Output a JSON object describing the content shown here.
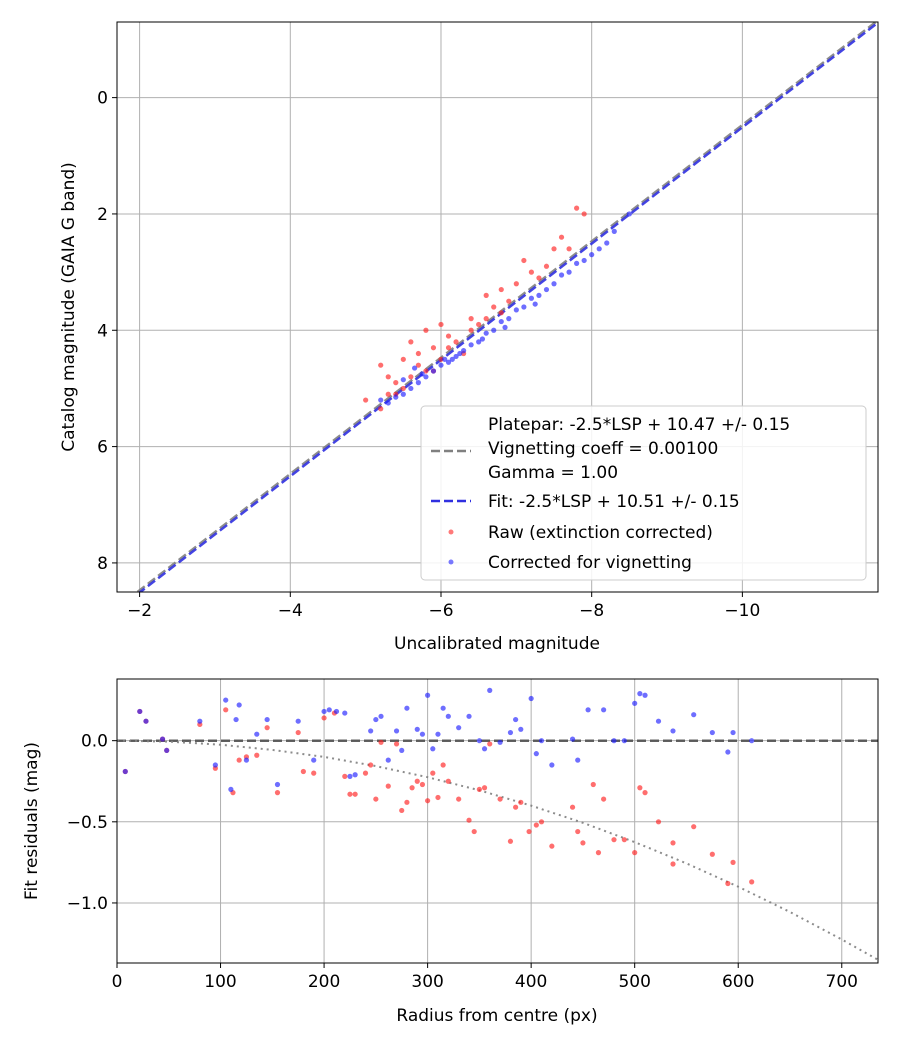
{
  "chart_data": [
    {
      "type": "scatter",
      "xlabel": "Uncalibrated magnitude",
      "ylabel": "Catalog magnitude (GAIA G band)",
      "xlim": [
        -1.7,
        -11.8
      ],
      "ylim": [
        8.5,
        -1.3
      ],
      "xticks": [
        -2,
        -4,
        -6,
        -8,
        -10
      ],
      "xtick_labels": [
        "−2",
        "−4",
        "−6",
        "−8",
        "−10"
      ],
      "yticks": [
        0,
        2,
        4,
        6,
        8
      ],
      "ytick_labels": [
        "0",
        "2",
        "4",
        "6",
        "8"
      ],
      "grid": true,
      "legend_position": "lower-right",
      "lines": [
        {
          "name": "Platepar",
          "label": "Platepar: -2.5*LSP + 10.47 +/- 0.15",
          "color": "#808080",
          "style": "dashed",
          "x": [
            -1.7,
            -11.8
          ],
          "y": [
            8.77,
            -1.33
          ]
        },
        {
          "name": "Fit",
          "label": "Fit: -2.5*LSP + 10.51 +/- 0.15",
          "color": "#3030e0",
          "style": "dashed",
          "x": [
            -1.7,
            -11.8
          ],
          "y": [
            8.81,
            -1.29
          ]
        }
      ],
      "legend_text": [
        "Vignetting coeff = 0.00100",
        "Gamma = 1.00"
      ],
      "series": [
        {
          "name": "Raw (extinction corrected)",
          "label": "Raw (extinction corrected)",
          "color": "#ff2020",
          "points": [
            [
              -5.2,
              5.35
            ],
            [
              -5.3,
              5.1
            ],
            [
              -5.5,
              5.0
            ],
            [
              -5.6,
              4.8
            ],
            [
              -5.8,
              4.7
            ],
            [
              -6.0,
              4.5
            ],
            [
              -6.1,
              4.3
            ],
            [
              -6.4,
              4.0
            ],
            [
              -6.6,
              3.8
            ],
            [
              -6.8,
              3.7
            ],
            [
              -7.0,
              3.2
            ],
            [
              -7.2,
              3.0
            ],
            [
              -7.4,
              2.9
            ],
            [
              -7.5,
              2.6
            ],
            [
              -7.7,
              2.6
            ],
            [
              -7.8,
              1.9
            ],
            [
              -7.9,
              2.0
            ],
            [
              -5.0,
              5.2
            ],
            [
              -5.4,
              4.9
            ],
            [
              -5.7,
              4.6
            ],
            [
              -5.9,
              4.3
            ],
            [
              -6.2,
              4.2
            ],
            [
              -6.5,
              3.9
            ],
            [
              -6.9,
              3.5
            ],
            [
              -7.3,
              3.1
            ],
            [
              -5.8,
              4.0
            ],
            [
              -6.0,
              3.9
            ],
            [
              -6.3,
              4.4
            ],
            [
              -5.5,
              4.5
            ],
            [
              -5.6,
              4.2
            ],
            [
              -6.7,
              3.6
            ],
            [
              -7.1,
              2.8
            ],
            [
              -5.3,
              4.8
            ],
            [
              -5.9,
              4.7
            ],
            [
              -6.1,
              4.1
            ],
            [
              -5.4,
              5.1
            ],
            [
              -5.2,
              4.6
            ],
            [
              -6.6,
              3.4
            ],
            [
              -7.6,
              2.4
            ],
            [
              -5.7,
              4.4
            ],
            [
              -6.4,
              3.8
            ],
            [
              -6.8,
              3.3
            ]
          ]
        },
        {
          "name": "Corrected for vignetting",
          "label": "Corrected for vignetting",
          "color": "#2020ff",
          "points": [
            [
              -5.3,
              5.25
            ],
            [
              -5.5,
              5.1
            ],
            [
              -5.7,
              4.9
            ],
            [
              -5.9,
              4.7
            ],
            [
              -6.1,
              4.55
            ],
            [
              -6.3,
              4.35
            ],
            [
              -6.5,
              4.2
            ],
            [
              -6.7,
              4.0
            ],
            [
              -6.9,
              3.8
            ],
            [
              -7.1,
              3.6
            ],
            [
              -7.3,
              3.4
            ],
            [
              -7.5,
              3.2
            ],
            [
              -7.7,
              3.0
            ],
            [
              -7.9,
              2.8
            ],
            [
              -8.1,
              2.6
            ],
            [
              -8.3,
              2.3
            ],
            [
              -8.5,
              2.0
            ],
            [
              -5.4,
              5.15
            ],
            [
              -5.6,
              5.0
            ],
            [
              -5.8,
              4.8
            ],
            [
              -6.0,
              4.6
            ],
            [
              -6.2,
              4.45
            ],
            [
              -6.4,
              4.25
            ],
            [
              -6.6,
              4.05
            ],
            [
              -6.8,
              3.85
            ],
            [
              -7.0,
              3.65
            ],
            [
              -7.2,
              3.45
            ],
            [
              -7.4,
              3.3
            ],
            [
              -7.6,
              3.05
            ],
            [
              -7.8,
              2.85
            ],
            [
              -8.0,
              2.7
            ],
            [
              -5.2,
              5.2
            ],
            [
              -5.75,
              4.75
            ],
            [
              -6.15,
              4.5
            ],
            [
              -6.55,
              4.15
            ],
            [
              -5.65,
              4.65
            ],
            [
              -6.05,
              4.5
            ],
            [
              -5.5,
              4.85
            ],
            [
              -6.25,
              4.4
            ],
            [
              -6.85,
              3.95
            ],
            [
              -7.25,
              3.55
            ],
            [
              -8.2,
              2.5
            ]
          ]
        }
      ]
    },
    {
      "type": "scatter",
      "xlabel": "Radius from centre (px)",
      "ylabel": "Fit residuals (mag)",
      "xlim": [
        0,
        735
      ],
      "ylim": [
        -1.37,
        0.38
      ],
      "xticks": [
        0,
        100,
        200,
        300,
        400,
        500,
        600,
        700
      ],
      "xtick_labels": [
        "0",
        "100",
        "200",
        "300",
        "400",
        "500",
        "600",
        "700"
      ],
      "yticks": [
        0.0,
        -0.5,
        -1.0
      ],
      "ytick_labels": [
        "0.0",
        "−0.5",
        "−1.0"
      ],
      "grid": true,
      "lines": [
        {
          "name": "Zero",
          "color": "#505050",
          "style": "dashed",
          "x": [
            0,
            735
          ],
          "y": [
            0,
            0
          ]
        },
        {
          "name": "Vignetting model",
          "color": "#808080",
          "style": "dotted",
          "x": [
            0,
            50,
            100,
            150,
            200,
            250,
            300,
            350,
            400,
            450,
            500,
            550,
            600,
            650,
            700,
            735
          ],
          "y": [
            0,
            -0.006,
            -0.025,
            -0.057,
            -0.1,
            -0.157,
            -0.225,
            -0.306,
            -0.4,
            -0.506,
            -0.625,
            -0.756,
            -0.9,
            -1.056,
            -1.225,
            -1.35
          ]
        }
      ],
      "series": [
        {
          "name": "Raw (extinction corrected)",
          "color": "#ff2020",
          "points": [
            [
              8,
              -0.19
            ],
            [
              22,
              0.18
            ],
            [
              28,
              0.12
            ],
            [
              44,
              0.01
            ],
            [
              48,
              -0.06
            ],
            [
              80,
              0.1
            ],
            [
              95,
              -0.17
            ],
            [
              105,
              0.19
            ],
            [
              112,
              -0.32
            ],
            [
              118,
              -0.12
            ],
            [
              125,
              -0.1
            ],
            [
              135,
              -0.09
            ],
            [
              145,
              0.08
            ],
            [
              155,
              -0.32
            ],
            [
              175,
              0.05
            ],
            [
              180,
              -0.19
            ],
            [
              190,
              -0.2
            ],
            [
              200,
              0.14
            ],
            [
              210,
              0.17
            ],
            [
              220,
              -0.22
            ],
            [
              225,
              -0.33
            ],
            [
              230,
              -0.33
            ],
            [
              240,
              -0.2
            ],
            [
              245,
              -0.15
            ],
            [
              250,
              -0.36
            ],
            [
              255,
              -0.01
            ],
            [
              262,
              -0.28
            ],
            [
              270,
              -0.02
            ],
            [
              275,
              -0.43
            ],
            [
              280,
              -0.38
            ],
            [
              285,
              -0.29
            ],
            [
              290,
              -0.25
            ],
            [
              295,
              -0.27
            ],
            [
              300,
              -0.37
            ],
            [
              305,
              -0.2
            ],
            [
              310,
              -0.35
            ],
            [
              315,
              -0.15
            ],
            [
              320,
              -0.25
            ],
            [
              330,
              -0.36
            ],
            [
              340,
              -0.49
            ],
            [
              345,
              -0.56
            ],
            [
              350,
              -0.3
            ],
            [
              355,
              -0.29
            ],
            [
              360,
              -0.02
            ],
            [
              370,
              -0.36
            ],
            [
              380,
              -0.62
            ],
            [
              385,
              -0.41
            ],
            [
              390,
              -0.38
            ],
            [
              398,
              -0.56
            ],
            [
              405,
              -0.52
            ],
            [
              410,
              -0.5
            ],
            [
              420,
              -0.65
            ],
            [
              440,
              -0.41
            ],
            [
              445,
              -0.56
            ],
            [
              450,
              -0.63
            ],
            [
              460,
              -0.27
            ],
            [
              465,
              -0.69
            ],
            [
              470,
              -0.36
            ],
            [
              480,
              -0.61
            ],
            [
              490,
              -0.61
            ],
            [
              500,
              -0.69
            ],
            [
              505,
              -0.29
            ],
            [
              510,
              -0.32
            ],
            [
              523,
              -0.5
            ],
            [
              537,
              -0.76
            ],
            [
              557,
              -0.53
            ],
            [
              575,
              -0.7
            ],
            [
              590,
              -0.88
            ],
            [
              595,
              -0.75
            ],
            [
              613,
              -0.87
            ],
            [
              537,
              -0.63
            ]
          ]
        },
        {
          "name": "Corrected for vignetting",
          "color": "#2020ff",
          "points": [
            [
              8,
              -0.19
            ],
            [
              22,
              0.18
            ],
            [
              28,
              0.12
            ],
            [
              44,
              0.01
            ],
            [
              48,
              -0.06
            ],
            [
              80,
              0.12
            ],
            [
              95,
              -0.15
            ],
            [
              105,
              0.25
            ],
            [
              110,
              -0.3
            ],
            [
              115,
              0.13
            ],
            [
              118,
              0.22
            ],
            [
              125,
              -0.12
            ],
            [
              135,
              0.04
            ],
            [
              145,
              0.13
            ],
            [
              155,
              -0.27
            ],
            [
              175,
              0.12
            ],
            [
              190,
              -0.12
            ],
            [
              200,
              0.18
            ],
            [
              205,
              0.19
            ],
            [
              212,
              0.18
            ],
            [
              220,
              0.17
            ],
            [
              225,
              -0.22
            ],
            [
              230,
              -0.21
            ],
            [
              245,
              0.06
            ],
            [
              250,
              0.13
            ],
            [
              255,
              0.15
            ],
            [
              262,
              -0.12
            ],
            [
              270,
              0.06
            ],
            [
              275,
              -0.06
            ],
            [
              280,
              0.2
            ],
            [
              290,
              0.07
            ],
            [
              295,
              0.04
            ],
            [
              300,
              0.28
            ],
            [
              305,
              -0.05
            ],
            [
              310,
              0.04
            ],
            [
              315,
              0.2
            ],
            [
              320,
              0.15
            ],
            [
              330,
              0.08
            ],
            [
              340,
              0.15
            ],
            [
              350,
              0.0
            ],
            [
              355,
              -0.05
            ],
            [
              360,
              0.31
            ],
            [
              370,
              -0.01
            ],
            [
              380,
              0.05
            ],
            [
              385,
              0.13
            ],
            [
              390,
              0.07
            ],
            [
              400,
              0.26
            ],
            [
              405,
              -0.08
            ],
            [
              410,
              0.0
            ],
            [
              420,
              -0.15
            ],
            [
              440,
              0.01
            ],
            [
              445,
              -0.12
            ],
            [
              455,
              0.19
            ],
            [
              470,
              0.19
            ],
            [
              480,
              0.0
            ],
            [
              490,
              0.0
            ],
            [
              500,
              0.23
            ],
            [
              505,
              0.29
            ],
            [
              510,
              0.28
            ],
            [
              523,
              0.12
            ],
            [
              537,
              0.06
            ],
            [
              557,
              0.16
            ],
            [
              575,
              0.05
            ],
            [
              590,
              -0.07
            ],
            [
              595,
              0.05
            ],
            [
              613,
              0.0
            ]
          ]
        }
      ]
    }
  ]
}
